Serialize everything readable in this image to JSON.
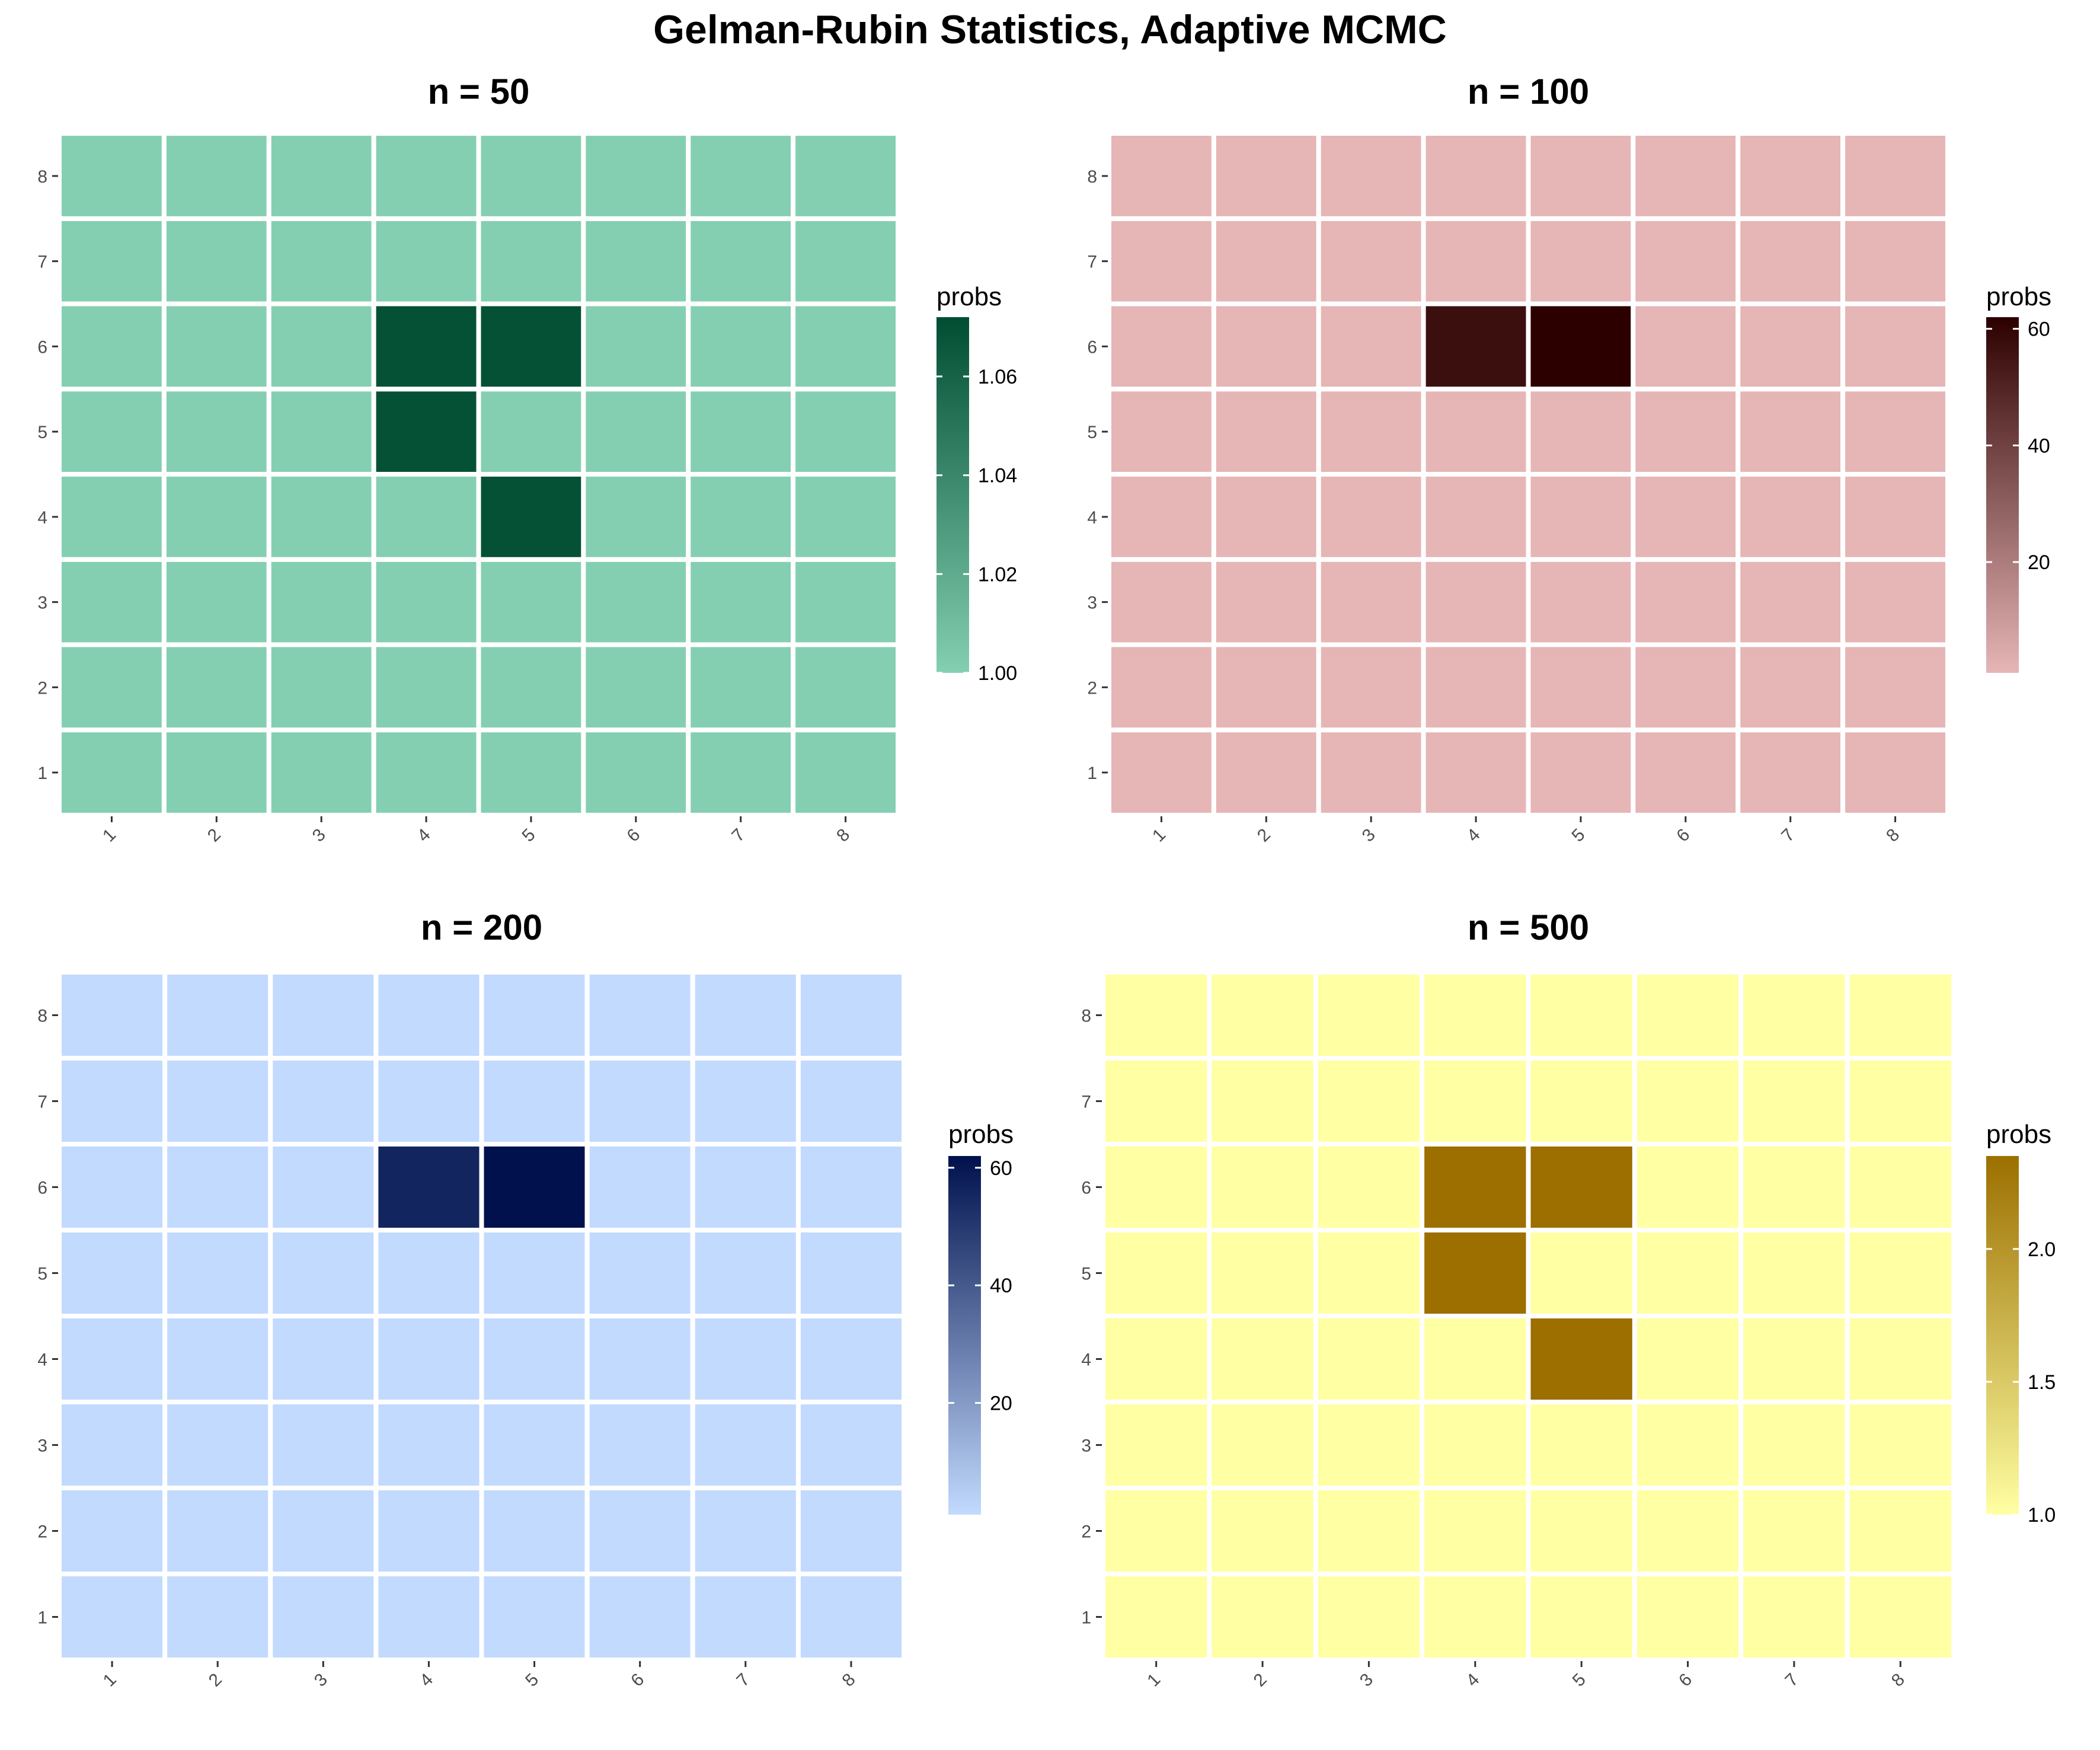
{
  "title": "Gelman-Rubin Statistics, Adaptive MCMC",
  "chart_data": [
    {
      "type": "heatmap",
      "title": "n = 50",
      "x_categories": [
        "1",
        "2",
        "3",
        "4",
        "5",
        "6",
        "7",
        "8"
      ],
      "y_categories": [
        "1",
        "2",
        "3",
        "4",
        "5",
        "6",
        "7",
        "8"
      ],
      "legend_title": "probs",
      "color_low": "#84cfb2",
      "color_high": "#004d32",
      "vmin": 1.0,
      "vmax": 1.072,
      "legend_ticks": [
        "1.00",
        "1.02",
        "1.04",
        "1.06"
      ],
      "legend_tick_values": [
        1.0,
        1.02,
        1.04,
        1.06
      ],
      "highlighted_cells": [
        {
          "x": "4",
          "y": "6",
          "value": 1.07
        },
        {
          "x": "5",
          "y": "6",
          "value": 1.07
        },
        {
          "x": "4",
          "y": "5",
          "value": 1.07
        },
        {
          "x": "5",
          "y": "4",
          "value": 1.07
        }
      ],
      "default_value": 1.0
    },
    {
      "type": "heatmap",
      "title": "n = 100",
      "x_categories": [
        "1",
        "2",
        "3",
        "4",
        "5",
        "6",
        "7",
        "8"
      ],
      "y_categories": [
        "1",
        "2",
        "3",
        "4",
        "5",
        "6",
        "7",
        "8"
      ],
      "legend_title": "probs",
      "color_low": "#e6b5b6",
      "color_high": "#2d0000",
      "vmin": 1.0,
      "vmax": 62,
      "legend_ticks": [
        "20",
        "40",
        "60"
      ],
      "legend_tick_values": [
        20,
        40,
        60
      ],
      "highlighted_cells": [
        {
          "x": "4",
          "y": "6",
          "value": 57
        },
        {
          "x": "5",
          "y": "6",
          "value": 62
        }
      ],
      "default_value": 1.0
    },
    {
      "type": "heatmap",
      "title": "n = 200",
      "x_categories": [
        "1",
        "2",
        "3",
        "4",
        "5",
        "6",
        "7",
        "8"
      ],
      "y_categories": [
        "1",
        "2",
        "3",
        "4",
        "5",
        "6",
        "7",
        "8"
      ],
      "legend_title": "probs",
      "color_low": "#c2dafe",
      "color_high": "#00114d",
      "vmin": 1.0,
      "vmax": 62,
      "legend_ticks": [
        "20",
        "40",
        "60"
      ],
      "legend_tick_values": [
        20,
        40,
        60
      ],
      "highlighted_cells": [
        {
          "x": "4",
          "y": "6",
          "value": 56
        },
        {
          "x": "5",
          "y": "6",
          "value": 62
        }
      ],
      "default_value": 1.0
    },
    {
      "type": "heatmap",
      "title": "n = 500",
      "x_categories": [
        "1",
        "2",
        "3",
        "4",
        "5",
        "6",
        "7",
        "8"
      ],
      "y_categories": [
        "1",
        "2",
        "3",
        "4",
        "5",
        "6",
        "7",
        "8"
      ],
      "legend_title": "probs",
      "color_low": "#ffffa3",
      "color_high": "#9c6f00",
      "vmin": 1.0,
      "vmax": 2.35,
      "legend_ticks": [
        "1.0",
        "1.5",
        "2.0"
      ],
      "legend_tick_values": [
        1.0,
        1.5,
        2.0
      ],
      "highlighted_cells": [
        {
          "x": "4",
          "y": "6",
          "value": 2.35
        },
        {
          "x": "5",
          "y": "6",
          "value": 2.35
        },
        {
          "x": "4",
          "y": "5",
          "value": 2.35
        },
        {
          "x": "5",
          "y": "4",
          "value": 2.35
        }
      ],
      "default_value": 1.0
    }
  ]
}
